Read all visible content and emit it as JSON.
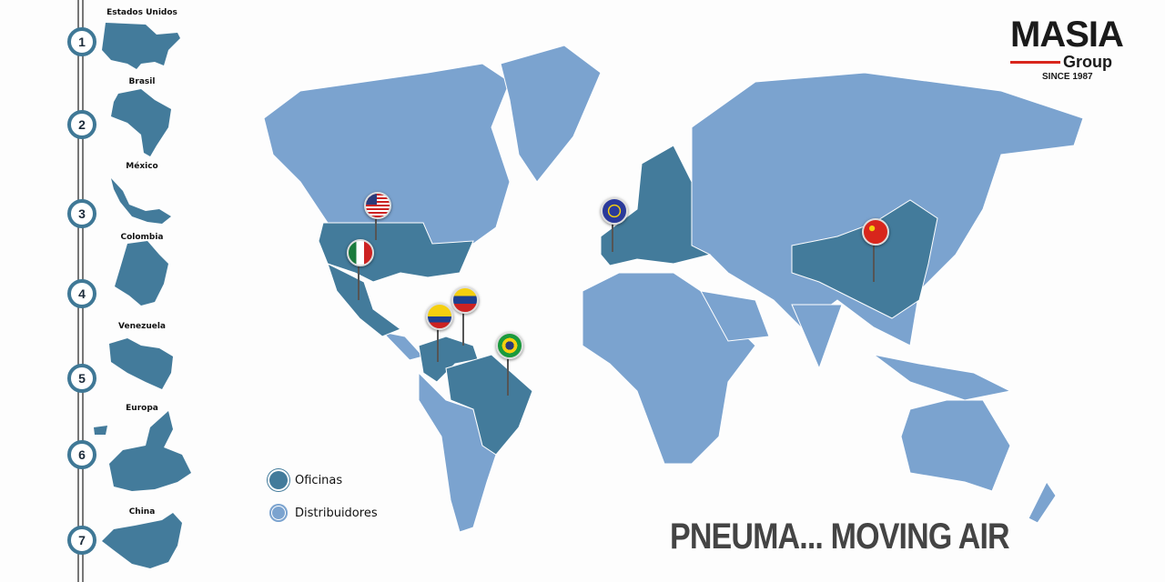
{
  "brand": {
    "name": "MASIA",
    "sub": "Group",
    "since": "SINCE 1987",
    "accent": "#d9261c"
  },
  "timeline": [
    {
      "n": "1",
      "country": "Estados Unidos"
    },
    {
      "n": "2",
      "country": "Brasil"
    },
    {
      "n": "3",
      "country": "México"
    },
    {
      "n": "4",
      "country": "Colombia"
    },
    {
      "n": "5",
      "country": "Venezuela"
    },
    {
      "n": "6",
      "country": "Europa"
    },
    {
      "n": "7",
      "country": "China"
    }
  ],
  "legend": {
    "offices": "Oficinas",
    "distributors": "Distribuidores"
  },
  "colors": {
    "offices": "#437b9b",
    "distributors": "#7ba3cf"
  },
  "pins": [
    "flag-usa",
    "flag-mexico",
    "flag-colombia",
    "flag-venezuela",
    "flag-brazil",
    "flag-eu",
    "flag-china"
  ],
  "slogan": "PNEUMA... MOVING AIR"
}
